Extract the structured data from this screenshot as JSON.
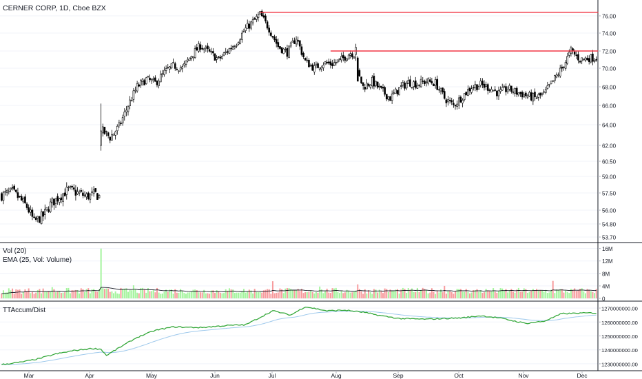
{
  "chart_data": [
    {
      "type": "candlestick",
      "title": "CERNER CORP, 1D, Cboe BZX",
      "y_ticks": [
        "76.00",
        "74.00",
        "72.00",
        "70.00",
        "68.00",
        "66.00",
        "64.00",
        "62.00",
        "60.50",
        "59.00",
        "57.50",
        "56.00",
        "54.80",
        "53.70"
      ],
      "x_ticks": [
        "Mar",
        "Apr",
        "May",
        "Jun",
        "Jul",
        "Aug",
        "Sep",
        "Oct",
        "Nov",
        "Dec"
      ],
      "anchors": [
        {
          "d": 0,
          "p": 57.3
        },
        {
          "d": 6,
          "p": 57.6
        },
        {
          "d": 10,
          "p": 57.0
        },
        {
          "d": 14,
          "p": 56.3
        },
        {
          "d": 18,
          "p": 55.0
        },
        {
          "d": 23,
          "p": 55.5
        },
        {
          "d": 27,
          "p": 56.5
        },
        {
          "d": 32,
          "p": 57.2
        },
        {
          "d": 37,
          "p": 57.8
        },
        {
          "d": 42,
          "p": 57.5
        },
        {
          "d": 47,
          "p": 57.2
        },
        {
          "d": 52,
          "p": 57.4
        },
        {
          "d": 54,
          "p": 57.2
        },
        {
          "d": 55,
          "p": 63.5
        },
        {
          "d": 60,
          "p": 62.8
        },
        {
          "d": 65,
          "p": 63.8
        },
        {
          "d": 70,
          "p": 66.0
        },
        {
          "d": 75,
          "p": 68.0
        },
        {
          "d": 80,
          "p": 68.8
        },
        {
          "d": 85,
          "p": 68.4
        },
        {
          "d": 90,
          "p": 69.5
        },
        {
          "d": 95,
          "p": 70.3
        },
        {
          "d": 100,
          "p": 70.0
        },
        {
          "d": 105,
          "p": 71.5
        },
        {
          "d": 110,
          "p": 72.6
        },
        {
          "d": 115,
          "p": 71.8
        },
        {
          "d": 120,
          "p": 71.0
        },
        {
          "d": 125,
          "p": 72.0
        },
        {
          "d": 130,
          "p": 73.0
        },
        {
          "d": 135,
          "p": 74.5
        },
        {
          "d": 140,
          "p": 75.5
        },
        {
          "d": 143,
          "p": 76.2
        },
        {
          "d": 148,
          "p": 74.5
        },
        {
          "d": 153,
          "p": 72.5
        },
        {
          "d": 158,
          "p": 71.8
        },
        {
          "d": 163,
          "p": 73.5
        },
        {
          "d": 168,
          "p": 70.8
        },
        {
          "d": 173,
          "p": 70.0
        },
        {
          "d": 178,
          "p": 70.6
        },
        {
          "d": 183,
          "p": 70.5
        },
        {
          "d": 188,
          "p": 71.0
        },
        {
          "d": 193,
          "p": 71.8
        },
        {
          "d": 196,
          "p": 71.5
        },
        {
          "d": 197,
          "p": 69.5
        },
        {
          "d": 200,
          "p": 68.0
        },
        {
          "d": 205,
          "p": 68.6
        },
        {
          "d": 210,
          "p": 67.6
        },
        {
          "d": 215,
          "p": 66.8
        },
        {
          "d": 220,
          "p": 67.8
        },
        {
          "d": 225,
          "p": 68.5
        },
        {
          "d": 230,
          "p": 68.3
        },
        {
          "d": 235,
          "p": 68.6
        },
        {
          "d": 240,
          "p": 68.4
        },
        {
          "d": 245,
          "p": 66.8
        },
        {
          "d": 250,
          "p": 66.0
        },
        {
          "d": 255,
          "p": 67.0
        },
        {
          "d": 260,
          "p": 68.0
        },
        {
          "d": 265,
          "p": 68.2
        },
        {
          "d": 270,
          "p": 67.9
        },
        {
          "d": 275,
          "p": 67.3
        },
        {
          "d": 280,
          "p": 67.8
        },
        {
          "d": 285,
          "p": 67.4
        },
        {
          "d": 290,
          "p": 67.1
        },
        {
          "d": 295,
          "p": 66.8
        },
        {
          "d": 300,
          "p": 67.2
        },
        {
          "d": 305,
          "p": 68.6
        },
        {
          "d": 310,
          "p": 70.0
        },
        {
          "d": 315,
          "p": 72.0
        },
        {
          "d": 320,
          "p": 71.0
        },
        {
          "d": 325,
          "p": 71.2
        }
      ],
      "price_range": [
        53.7,
        77.2
      ],
      "resistance_lines": [
        {
          "price": 76.4,
          "from_day": 143,
          "to_day": 329
        },
        {
          "price": 72.0,
          "from_day": 182,
          "to_day": 329
        }
      ],
      "colors": {
        "up": "#ffffff",
        "down": "#000000",
        "outline": "#000000",
        "line": "#f23645"
      }
    },
    {
      "type": "bar",
      "title": "Vol (20)",
      "ema_label": "EMA (25, Vol: Volume)",
      "y_ticks": [
        "16M",
        "12M",
        "8M",
        "4M",
        "0"
      ],
      "y_max": 16.8,
      "base_volume": 2.6,
      "spikes": [
        {
          "d": 55,
          "v": 16.0
        },
        {
          "d": 28,
          "v": 3.6
        },
        {
          "d": 73,
          "v": 4.2
        },
        {
          "d": 150,
          "v": 5.5
        },
        {
          "d": 176,
          "v": 3.8
        },
        {
          "d": 197,
          "v": 4.5
        },
        {
          "d": 245,
          "v": 4.0
        },
        {
          "d": 305,
          "v": 5.6
        }
      ],
      "colors": {
        "up": "#a5f49e",
        "down": "#f79c9e",
        "ema": "#131722"
      }
    },
    {
      "type": "line",
      "title": "TTAccum/Dist",
      "y_ticks": [
        "1270000000.00",
        "1260000000.00",
        "1250000000.00",
        "1240000000.00",
        "1230000000.00"
      ],
      "y_range": [
        1227000000,
        1273000000
      ],
      "anchors": [
        {
          "d": 0,
          "v": 1229500000
        },
        {
          "d": 10,
          "v": 1231000000
        },
        {
          "d": 20,
          "v": 1233500000
        },
        {
          "d": 30,
          "v": 1237000000
        },
        {
          "d": 40,
          "v": 1239500000
        },
        {
          "d": 50,
          "v": 1241000000
        },
        {
          "d": 55,
          "v": 1240500000
        },
        {
          "d": 58,
          "v": 1236000000
        },
        {
          "d": 65,
          "v": 1241500000
        },
        {
          "d": 75,
          "v": 1249000000
        },
        {
          "d": 85,
          "v": 1254000000
        },
        {
          "d": 95,
          "v": 1256500000
        },
        {
          "d": 110,
          "v": 1256000000
        },
        {
          "d": 125,
          "v": 1257500000
        },
        {
          "d": 135,
          "v": 1258000000
        },
        {
          "d": 150,
          "v": 1268000000
        },
        {
          "d": 160,
          "v": 1265000000
        },
        {
          "d": 168,
          "v": 1271000000
        },
        {
          "d": 180,
          "v": 1268000000
        },
        {
          "d": 190,
          "v": 1268500000
        },
        {
          "d": 200,
          "v": 1267000000
        },
        {
          "d": 210,
          "v": 1264500000
        },
        {
          "d": 220,
          "v": 1262500000
        },
        {
          "d": 235,
          "v": 1262000000
        },
        {
          "d": 245,
          "v": 1262500000
        },
        {
          "d": 255,
          "v": 1263000000
        },
        {
          "d": 265,
          "v": 1264500000
        },
        {
          "d": 275,
          "v": 1263000000
        },
        {
          "d": 290,
          "v": 1259000000
        },
        {
          "d": 300,
          "v": 1260500000
        },
        {
          "d": 310,
          "v": 1266000000
        },
        {
          "d": 325,
          "v": 1266500000
        }
      ],
      "colors": {
        "line": "#35a83a",
        "ma": "#9ec9ec"
      }
    }
  ]
}
